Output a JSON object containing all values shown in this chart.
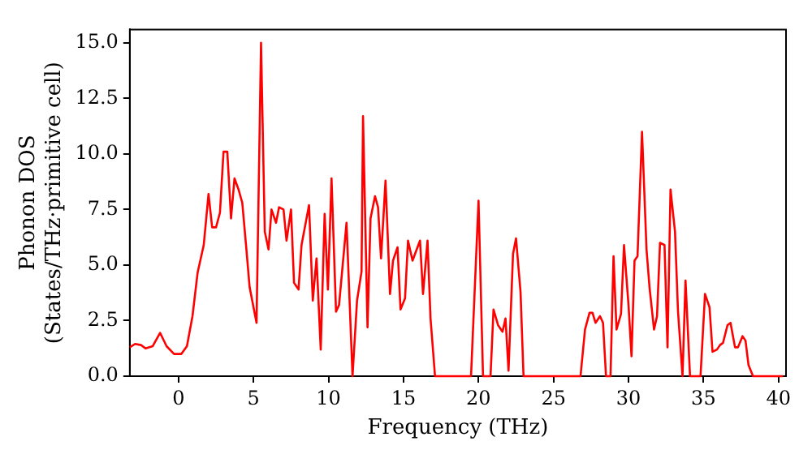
{
  "chart_data": {
    "type": "line",
    "xlabel": "Frequency (THz)",
    "ylabel": "Phonon DOS\n(States/THz·primitive cell)",
    "series": [
      {
        "color": "#ff0000",
        "x": [
          -3.25,
          -2.9,
          -2.5,
          -2.2,
          -1.72,
          -1.23,
          -0.8,
          -0.3,
          0.19,
          0.56,
          0.93,
          1.27,
          1.68,
          2.0,
          2.24,
          2.5,
          2.76,
          3.0,
          3.25,
          3.5,
          3.73,
          4.0,
          4.25,
          4.5,
          4.74,
          5.2,
          5.5,
          5.75,
          6.0,
          6.2,
          6.5,
          6.7,
          7.0,
          7.2,
          7.5,
          7.7,
          8.0,
          8.2,
          8.7,
          8.95,
          9.2,
          9.48,
          9.74,
          9.96,
          10.2,
          10.5,
          10.7,
          11.2,
          11.6,
          11.9,
          12.2,
          12.3,
          12.6,
          12.8,
          13.1,
          13.3,
          13.5,
          13.8,
          14.1,
          14.3,
          14.6,
          14.8,
          15.1,
          15.3,
          15.6,
          16.1,
          16.3,
          16.6,
          16.8,
          17.1,
          19.5,
          20.0,
          20.3,
          20.8,
          21.0,
          21.3,
          21.6,
          21.8,
          22.0,
          22.3,
          22.5,
          22.8,
          23.0,
          26.8,
          27.1,
          27.4,
          27.6,
          27.8,
          28.1,
          28.3,
          28.5,
          28.8,
          29.0,
          29.2,
          29.5,
          29.7,
          30.0,
          30.2,
          30.4,
          30.6,
          30.9,
          31.2,
          31.4,
          31.7,
          31.9,
          32.1,
          32.4,
          32.6,
          32.8,
          33.1,
          33.3,
          33.6,
          33.8,
          34.1,
          34.8,
          35.1,
          35.4,
          35.6,
          35.9,
          36.1,
          36.3,
          36.6,
          36.8,
          37.1,
          37.3,
          37.6,
          37.8,
          38.0,
          38.3,
          40.3
        ],
        "values": [
          1.3,
          1.45,
          1.4,
          1.25,
          1.35,
          1.95,
          1.35,
          1.0,
          1.0,
          1.35,
          2.7,
          4.65,
          5.9,
          8.2,
          6.7,
          6.7,
          7.35,
          10.1,
          10.1,
          7.1,
          8.9,
          8.4,
          7.8,
          5.9,
          4.0,
          2.4,
          15.0,
          6.5,
          5.7,
          7.5,
          6.9,
          7.6,
          7.5,
          6.1,
          7.5,
          4.2,
          3.9,
          5.9,
          7.7,
          3.4,
          5.3,
          1.2,
          7.3,
          3.9,
          8.9,
          2.9,
          3.2,
          6.9,
          0,
          3.4,
          4.7,
          11.7,
          2.2,
          7.1,
          8.1,
          7.6,
          5.3,
          8.8,
          3.7,
          5.2,
          5.8,
          3.0,
          3.5,
          6.1,
          5.2,
          6.1,
          3.7,
          6.1,
          2.6,
          0,
          0,
          7.9,
          0,
          0,
          3.0,
          2.3,
          2.0,
          2.6,
          0.25,
          5.5,
          6.2,
          3.8,
          0,
          0,
          2.1,
          2.85,
          2.85,
          2.4,
          2.7,
          2.4,
          0,
          0,
          5.4,
          2.1,
          2.8,
          5.9,
          3.2,
          0.9,
          5.2,
          5.4,
          11.0,
          5.7,
          4.0,
          2.1,
          2.7,
          6.0,
          5.9,
          1.3,
          8.4,
          6.5,
          2.9,
          0,
          4.3,
          0,
          0,
          3.7,
          3.1,
          1.1,
          1.2,
          1.4,
          1.5,
          2.3,
          2.4,
          1.3,
          1.3,
          1.8,
          1.6,
          0.5,
          0,
          0
        ]
      }
    ],
    "xlim": [
      -3.25,
      40.5
    ],
    "xticks": [
      0,
      5,
      10,
      15,
      20,
      25,
      30,
      35,
      40
    ],
    "ylim": [
      0,
      15.6
    ],
    "yticks": [
      {
        "value": 0,
        "label": "0.0"
      },
      {
        "value": 2.5,
        "label": "2.5"
      },
      {
        "value": 5,
        "label": "5.0"
      },
      {
        "value": 7.5,
        "label": "7.5"
      },
      {
        "value": 10,
        "label": "10.0"
      },
      {
        "value": 12.5,
        "label": "12.5"
      },
      {
        "value": 15,
        "label": "15.0"
      }
    ],
    "grid": false,
    "legend": false,
    "marker": "none",
    "line_style": "solid"
  }
}
